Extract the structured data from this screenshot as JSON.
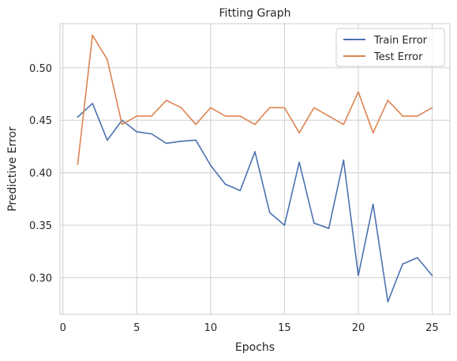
{
  "chart_data": {
    "type": "line",
    "title": "Fitting Graph",
    "xlabel": "Epochs",
    "ylabel": "Predictive Error",
    "xlim": [
      -0.2,
      26.2
    ],
    "ylim": [
      0.265,
      0.542
    ],
    "xticks": [
      0,
      5,
      10,
      15,
      20,
      25
    ],
    "yticks": [
      0.3,
      0.35,
      0.4,
      0.45,
      0.5
    ],
    "xtick_labels": [
      "0",
      "5",
      "10",
      "15",
      "20",
      "25"
    ],
    "ytick_labels": [
      "0.30",
      "0.35",
      "0.40",
      "0.45",
      "0.50"
    ],
    "grid": true,
    "legend_position": "top-right",
    "x": [
      1,
      2,
      3,
      4,
      5,
      6,
      7,
      8,
      9,
      10,
      11,
      12,
      13,
      14,
      15,
      16,
      17,
      18,
      19,
      20,
      21,
      22,
      23,
      24,
      25
    ],
    "series": [
      {
        "name": "Train Error",
        "color": "#4c72b0",
        "values": [
          0.453,
          0.466,
          0.431,
          0.45,
          0.439,
          0.437,
          0.428,
          0.43,
          0.431,
          0.407,
          0.389,
          0.383,
          0.42,
          0.362,
          0.35,
          0.41,
          0.352,
          0.347,
          0.412,
          0.302,
          0.37,
          0.277,
          0.313,
          0.319,
          0.302
        ]
      },
      {
        "name": "Test Error",
        "color": "#dd8452",
        "values": [
          0.408,
          0.531,
          0.508,
          0.446,
          0.454,
          0.454,
          0.469,
          0.462,
          0.446,
          0.462,
          0.454,
          0.454,
          0.446,
          0.462,
          0.462,
          0.438,
          0.462,
          0.454,
          0.446,
          0.477,
          0.438,
          0.469,
          0.454,
          0.454,
          0.462
        ]
      }
    ]
  }
}
